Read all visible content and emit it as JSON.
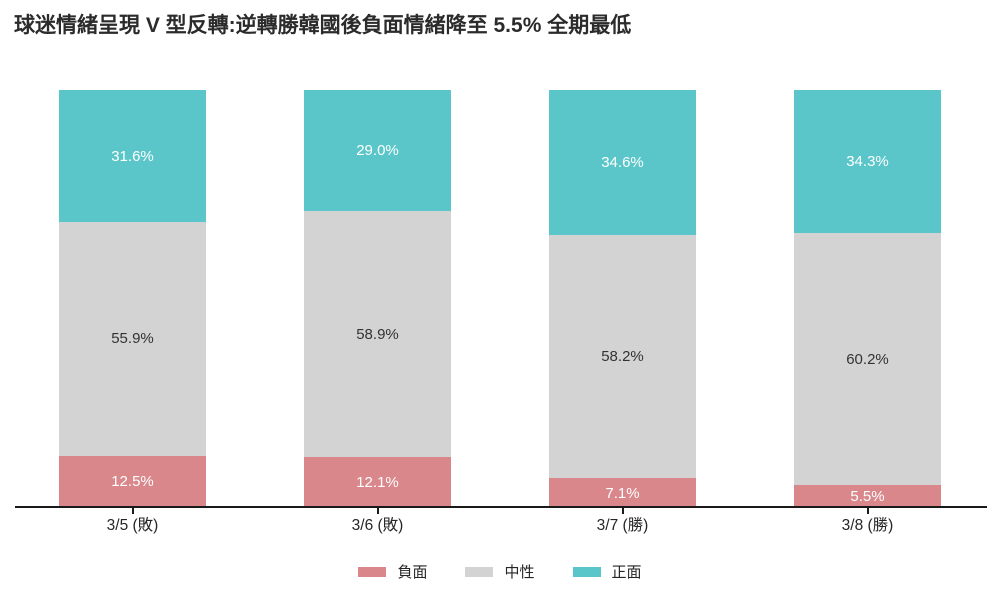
{
  "title": "球迷情緒呈現 V 型反轉:逆轉勝韓國後負面情緒降至 5.5% 全期最低",
  "chart_data": {
    "type": "bar",
    "stacked": true,
    "orientation": "vertical",
    "unit": "%",
    "title": "球迷情緒呈現 V 型反轉:逆轉勝韓國後負面情緒降至 5.5% 全期最低",
    "categories": [
      "3/5 (敗)",
      "3/6 (敗)",
      "3/7 (勝)",
      "3/8 (勝)"
    ],
    "series": [
      {
        "name": "負面",
        "color": "#d9878b",
        "label_color": "#ffffff",
        "values": [
          12.5,
          12.1,
          7.1,
          5.5
        ]
      },
      {
        "name": "中性",
        "color": "#d3d3d3",
        "label_color": "#333333",
        "values": [
          55.9,
          58.9,
          58.2,
          60.2
        ]
      },
      {
        "name": "正面",
        "color": "#5ac6c9",
        "label_color": "#ffffff",
        "values": [
          31.6,
          29.0,
          34.6,
          34.3
        ]
      }
    ],
    "ylim": [
      0,
      100
    ],
    "grid": false,
    "y_axis_visible": false,
    "legend_position": "bottom",
    "value_label_format": "{value}%",
    "axis_color": "#1a1a1a"
  }
}
